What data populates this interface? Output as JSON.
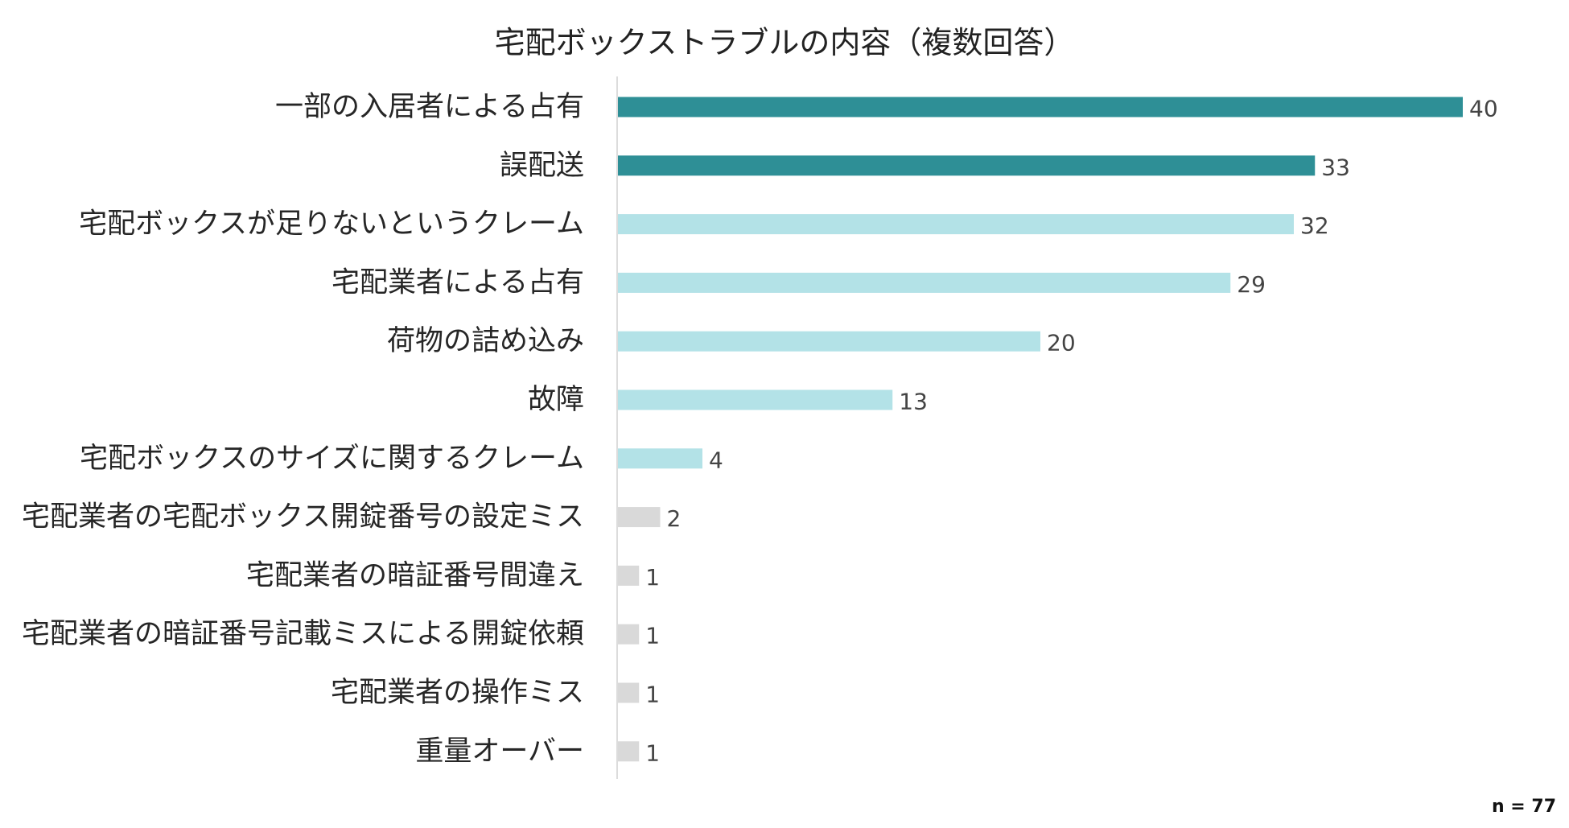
{
  "chart_data": {
    "type": "bar",
    "orientation": "horizontal",
    "title": "宅配ボックストラブルの内容（複数回答）",
    "categories": [
      "一部の入居者による占有",
      "誤配送",
      "宅配ボックスが足りないというクレーム",
      "宅配業者による占有",
      "荷物の詰め込み",
      "故障",
      "宅配ボックスのサイズに関するクレーム",
      "宅配業者の宅配ボックス開錠番号の設定ミス",
      "宅配業者の暗証番号間違え",
      "宅配業者の暗証番号記載ミスによる開錠依頼",
      "宅配業者の操作ミス",
      "重量オーバー"
    ],
    "values": [
      40,
      33,
      32,
      29,
      20,
      13,
      4,
      2,
      1,
      1,
      1,
      1
    ],
    "bar_groups": [
      "top",
      "top",
      "mid",
      "mid",
      "mid",
      "mid",
      "mid",
      "low",
      "low",
      "low",
      "low",
      "low"
    ],
    "colors": {
      "top": "#2e8f96",
      "mid": "#b3e2e7",
      "low": "#d9d9d9",
      "axis": "#d0d0d0"
    },
    "xlim": [
      0,
      40
    ],
    "xlabel": "",
    "ylabel": "",
    "grid": false,
    "legend": "none",
    "sample_size": "n = 77"
  }
}
